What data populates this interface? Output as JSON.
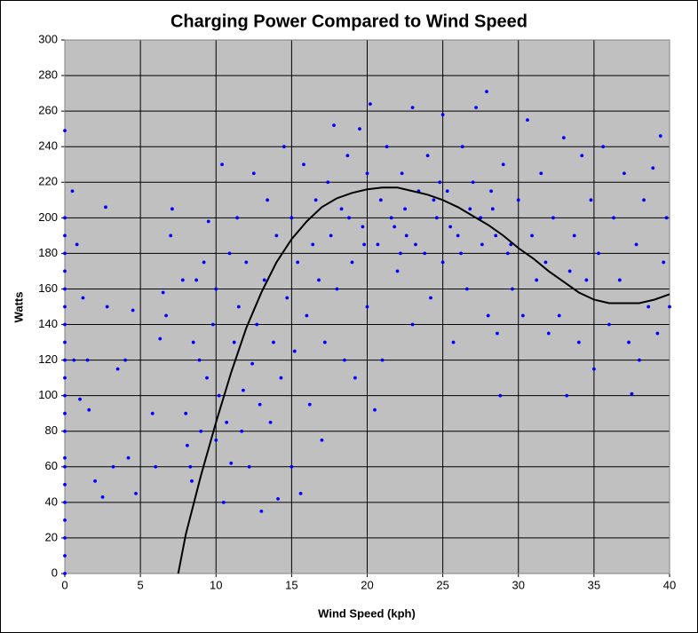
{
  "chart_data": {
    "type": "scatter",
    "title": "Charging Power Compared to Wind Speed",
    "xlabel": "Wind Speed (kph)",
    "ylabel": "Watts",
    "xlim": [
      0,
      40
    ],
    "xticks": [
      0,
      5,
      10,
      15,
      20,
      25,
      30,
      35,
      40
    ],
    "ylim": [
      0,
      300
    ],
    "yticks": [
      0,
      20,
      40,
      60,
      80,
      100,
      120,
      140,
      160,
      180,
      200,
      220,
      240,
      260,
      280,
      300
    ],
    "grid": true,
    "background": "#c0c0c0",
    "series": [
      {
        "style": "markers",
        "color": "#0000ff",
        "x": [
          0,
          0,
          0,
          0,
          0,
          0,
          0,
          0,
          0,
          0,
          0,
          0,
          0,
          0,
          0,
          0,
          0,
          0,
          0,
          0,
          0,
          0,
          0.5,
          0.6,
          0.8,
          1,
          1.2,
          1.5,
          1.6,
          2,
          2.5,
          2.7,
          2.8,
          3.2,
          3.5,
          4,
          4.2,
          4.5,
          4.7,
          5.8,
          6,
          6.3,
          6.5,
          6.7,
          7,
          7.1,
          7.8,
          8,
          8.1,
          8.3,
          8.4,
          8.5,
          8.7,
          8.9,
          9,
          9.2,
          9.4,
          9.5,
          9.8,
          10,
          10,
          10.2,
          10.4,
          10.5,
          10.7,
          10.9,
          11,
          11.2,
          11.4,
          11.5,
          11.7,
          11.8,
          12,
          12.2,
          12.4,
          12.5,
          12.7,
          12.9,
          13,
          13.2,
          13.4,
          13.6,
          13.8,
          14,
          14.1,
          14.3,
          14.5,
          14.7,
          15,
          15,
          15.2,
          15.4,
          15.6,
          15.8,
          16,
          16.2,
          16.4,
          16.6,
          16.8,
          17,
          17.2,
          17.4,
          17.6,
          17.8,
          18,
          18.3,
          18.5,
          18.7,
          19,
          19.2,
          19.5,
          19.7,
          20,
          20,
          20.2,
          20.5,
          20.7,
          20.9,
          21,
          21.3,
          21.6,
          22,
          22.3,
          22.6,
          23,
          23,
          23.4,
          23.8,
          24,
          24.2,
          24.6,
          25,
          25,
          25.3,
          25.7,
          26,
          26.3,
          26.6,
          27,
          27.2,
          27.6,
          27.9,
          28,
          28.3,
          28.6,
          28.8,
          29,
          29.3,
          29.6,
          30,
          30.3,
          30.6,
          30.9,
          31.2,
          31.5,
          31.8,
          32,
          32.3,
          32.7,
          33,
          33.2,
          33.4,
          33.7,
          34,
          34.2,
          34.5,
          34.8,
          35,
          35.3,
          35.6,
          36,
          36.3,
          36.7,
          37,
          37.3,
          37.5,
          37.8,
          38,
          38.3,
          38.6,
          38.9,
          39.2,
          39.4,
          39.6,
          39.8,
          40,
          21.8,
          22.5,
          23.2,
          24.4,
          25.5,
          26.8,
          27.5,
          28.5,
          29.5,
          22.2,
          24.8,
          26.2,
          28.2,
          19.8,
          18.8
        ],
        "values": [
          0,
          10,
          20,
          30,
          40,
          50,
          60,
          65,
          80,
          90,
          100,
          110,
          120,
          130,
          140,
          150,
          160,
          170,
          180,
          190,
          200,
          249,
          215,
          120,
          185,
          98,
          155,
          120,
          92,
          52,
          43,
          206,
          150,
          60,
          115,
          120,
          65,
          148,
          45,
          90,
          60,
          132,
          158,
          145,
          190,
          205,
          165,
          90,
          72,
          60,
          52,
          130,
          165,
          120,
          80,
          175,
          110,
          198,
          140,
          75,
          160,
          100,
          230,
          40,
          85,
          180,
          62,
          130,
          200,
          150,
          80,
          103,
          175,
          60,
          118,
          225,
          140,
          95,
          35,
          165,
          210,
          85,
          130,
          190,
          42,
          110,
          240,
          155,
          60,
          200,
          125,
          175,
          45,
          230,
          145,
          95,
          185,
          210,
          165,
          75,
          130,
          220,
          190,
          252,
          160,
          205,
          120,
          235,
          175,
          110,
          250,
          195,
          150,
          225,
          264,
          92,
          185,
          210,
          120,
          240,
          200,
          170,
          225,
          190,
          140,
          262,
          215,
          180,
          235,
          155,
          200,
          258,
          175,
          215,
          130,
          190,
          240,
          160,
          220,
          262,
          185,
          271,
          145,
          205,
          135,
          100,
          230,
          180,
          160,
          210,
          145,
          255,
          190,
          165,
          225,
          175,
          135,
          200,
          145,
          245,
          100,
          170,
          190,
          130,
          235,
          165,
          210,
          115,
          180,
          240,
          140,
          200,
          165,
          225,
          130,
          101,
          185,
          120,
          210,
          150,
          228,
          135,
          246,
          175,
          200,
          150,
          195,
          205,
          185,
          210,
          195,
          205,
          200,
          190,
          185,
          180,
          220,
          180,
          215,
          185,
          200
        ]
      },
      {
        "style": "line",
        "color": "#000000",
        "x": [
          7.5,
          8,
          9,
          10,
          11,
          12,
          13,
          14,
          15,
          16,
          17,
          18,
          19,
          20,
          21,
          22,
          23,
          24,
          25,
          26,
          27,
          28,
          29,
          30,
          31,
          32,
          33,
          34,
          35,
          36,
          37,
          38,
          39,
          40
        ],
        "values": [
          0,
          22,
          55,
          85,
          113,
          138,
          158,
          175,
          188,
          198,
          206,
          211,
          214,
          216,
          217,
          217,
          215,
          213,
          210,
          206,
          201,
          196,
          190,
          183,
          177,
          170,
          164,
          158,
          154,
          152,
          152,
          152,
          154,
          157
        ]
      }
    ]
  }
}
